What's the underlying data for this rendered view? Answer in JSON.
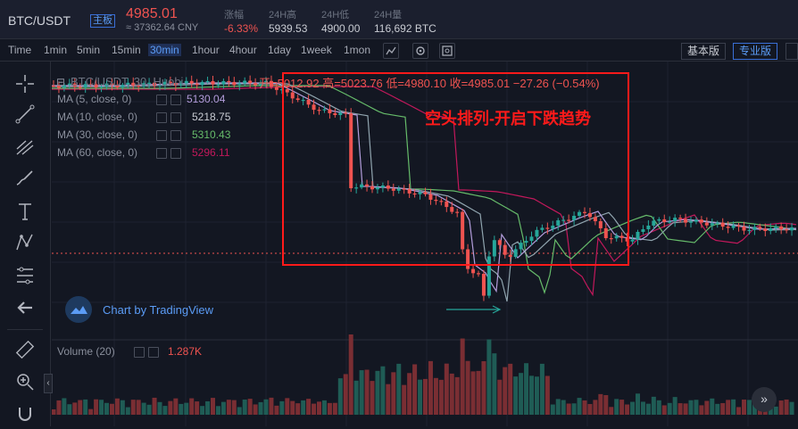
{
  "header": {
    "pair": "BTC/USDT",
    "badge": "主板",
    "price": "4985.01",
    "cny": "≈ 37362.64 CNY",
    "stats": [
      {
        "label": "涨幅",
        "value": "-6.33%",
        "color": "#ef5350"
      },
      {
        "label": "24H高",
        "value": "5939.53",
        "color": "#c9ccd3"
      },
      {
        "label": "24H低",
        "value": "4900.00",
        "color": "#c9ccd3"
      },
      {
        "label": "24H量",
        "value": "116,692 BTC",
        "color": "#c9ccd3"
      }
    ]
  },
  "toolbar": {
    "intervals": [
      "Time",
      "1min",
      "5min",
      "15min",
      "30min",
      "1hour",
      "4hour",
      "1day",
      "1week",
      "1mon"
    ],
    "active_interval": "30min",
    "basic_view": "基本版",
    "pro_view": "专业版"
  },
  "chart": {
    "symbol_line": "BTC/USDT, 30, Huobi",
    "ohlc": "开=5012.92  高=5023.76  低=4980.10  收=4985.01  −27.26 (−0.54%)",
    "ma": [
      {
        "label": "MA (5, close, 0)",
        "value": "5130.04",
        "color": "#b39ddb"
      },
      {
        "label": "MA (10, close, 0)",
        "value": "5218.75",
        "color": "#90a4ae"
      },
      {
        "label": "MA (30, close, 0)",
        "value": "5310.43",
        "color": "#66bb6a"
      },
      {
        "label": "MA (60, close, 0)",
        "value": "5296.11",
        "color": "#c2185b"
      }
    ],
    "annotation": "空头排列-开启下跌趋势",
    "watermark": "Chart by TradingView",
    "volume_label": "Volume (20)",
    "volume_value": "1.287K"
  },
  "colors": {
    "up": "#26a69a",
    "down": "#ef5350",
    "accent": "#5b9cf6"
  }
}
